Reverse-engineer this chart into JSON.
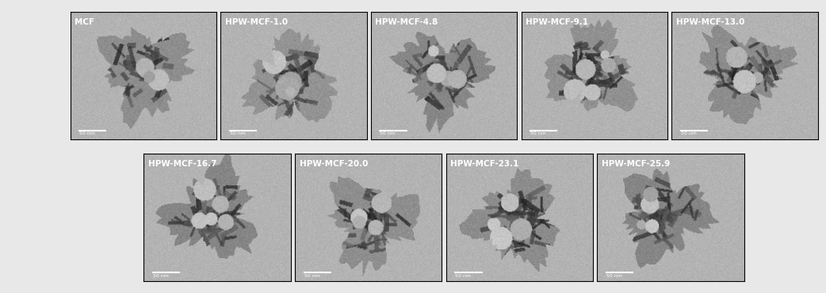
{
  "labels_row1": [
    "MCF",
    "HPW-MCF-1.0",
    "HPW-MCF-4.8",
    "HPW-MCF-9.1",
    "HPW-MCF-13.0"
  ],
  "labels_row2": [
    "HPW-MCF-16.7",
    "HPW-MCF-20.0",
    "HPW-MCF-23.1",
    "HPW-MCF-25.9"
  ],
  "scale_bar_text": "50 nm",
  "bg_color": "#d0d0d0",
  "label_color": "white",
  "label_fontsize": 7.5,
  "scale_fontsize": 4.5,
  "fig_bg": "#e8e8e8",
  "seed_row1": [
    10,
    20,
    30,
    40,
    50
  ],
  "seed_row2": [
    60,
    70,
    80,
    90
  ],
  "n_circles_row1": [
    12,
    14,
    13,
    16,
    11
  ],
  "n_circles_row2": [
    15,
    14,
    13,
    12
  ],
  "figsize": [
    10.42,
    3.7
  ],
  "dpi": 100
}
